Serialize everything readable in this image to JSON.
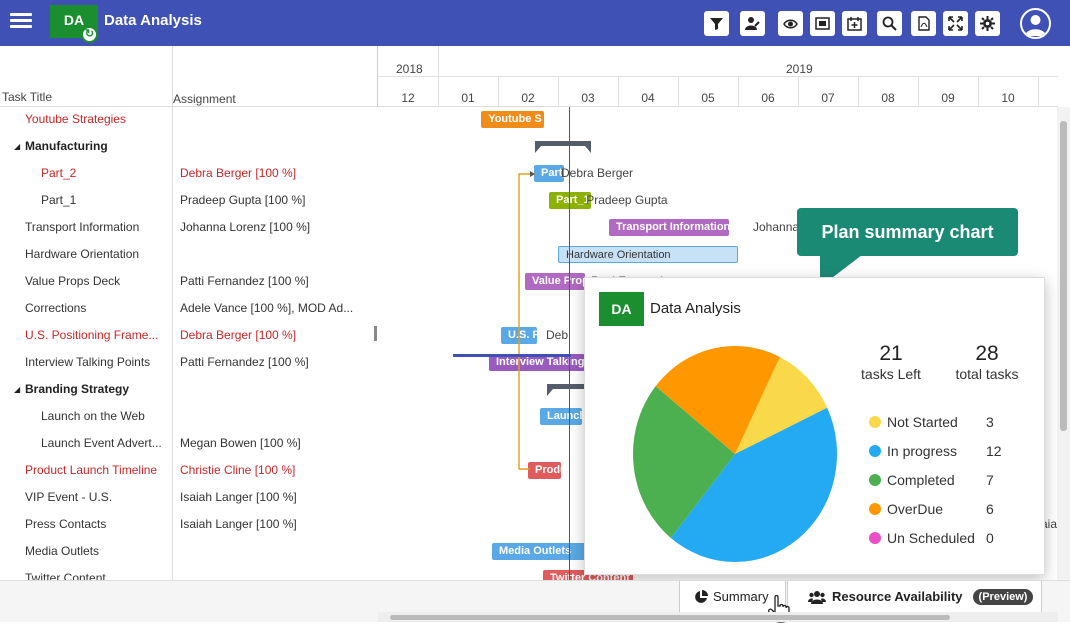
{
  "app": {
    "title": "Data Analysis",
    "logo": "DA"
  },
  "toolbar": [
    "filter-icon",
    "user-edit-icon",
    "eye-icon",
    "fit-screen-icon",
    "calendar-add-icon",
    "zoom-icon",
    "pdf-icon",
    "fullscreen-icon",
    "settings-icon"
  ],
  "grid": {
    "col_task": "Task Title",
    "col_assign": "Assignment",
    "rows": [
      {
        "task": "Youtube Strategies",
        "assign": "",
        "indent": 1,
        "style": "red"
      },
      {
        "task": "Manufacturing",
        "assign": "",
        "indent": 0,
        "style": "bold",
        "expand": "◢"
      },
      {
        "task": "Part_2",
        "assign": "Debra Berger [100 %]",
        "indent": 2,
        "style": "red"
      },
      {
        "task": "Part_1",
        "assign": "Pradeep Gupta [100 %]",
        "indent": 2,
        "style": ""
      },
      {
        "task": "Transport Information",
        "assign": "Johanna Lorenz [100 %]",
        "indent": 1,
        "style": ""
      },
      {
        "task": "Hardware Orientation",
        "assign": "",
        "indent": 1,
        "style": ""
      },
      {
        "task": "Value Props Deck",
        "assign": "Patti Fernandez [100 %]",
        "indent": 1,
        "style": ""
      },
      {
        "task": "Corrections",
        "assign": "Adele Vance [100 %], MOD Ad...",
        "indent": 1,
        "style": ""
      },
      {
        "task": "U.S. Positioning Frame...",
        "assign": "Debra Berger [100 %]",
        "indent": 1,
        "style": "red"
      },
      {
        "task": "Interview Talking Points",
        "assign": "Patti Fernandez [100 %]",
        "indent": 1,
        "style": ""
      },
      {
        "task": "Branding Strategy",
        "assign": "",
        "indent": 0,
        "style": "bold",
        "expand": "◢"
      },
      {
        "task": "Launch on the Web",
        "assign": "",
        "indent": 2,
        "style": ""
      },
      {
        "task": "Launch Event Advert...",
        "assign": "Megan Bowen [100 %]",
        "indent": 2,
        "style": ""
      },
      {
        "task": "Product Launch Timeline",
        "assign": "Christie Cline [100 %]",
        "indent": 1,
        "style": "red"
      },
      {
        "task": "VIP Event - U.S.",
        "assign": "Isaiah Langer [100 %]",
        "indent": 1,
        "style": ""
      },
      {
        "task": "Press Contacts",
        "assign": "Isaiah Langer [100 %]",
        "indent": 1,
        "style": ""
      },
      {
        "task": "Media Outlets",
        "assign": "",
        "indent": 1,
        "style": ""
      },
      {
        "task": "Twitter Content",
        "assign": "",
        "indent": 1,
        "style": ""
      }
    ]
  },
  "timeline": {
    "years": [
      "2018",
      "2019"
    ],
    "months": [
      "12",
      "01",
      "02",
      "03",
      "04",
      "05",
      "06",
      "07",
      "08",
      "09",
      "10"
    ],
    "bars": [
      {
        "label": "Youtube S",
        "row": 0,
        "start": 1.72,
        "len": 1.05,
        "color": "#ef8c1a"
      },
      {
        "label": "Part_2",
        "row": 2,
        "start": 2.6,
        "len": 0.5,
        "color": "#5aa9e6"
      },
      {
        "label": "Part_1",
        "row": 3,
        "start": 2.85,
        "len": 0.7,
        "color": "#8db100"
      },
      {
        "label": "Transport Information",
        "row": 4,
        "start": 3.85,
        "len": 2.0,
        "color": "#b06ac1"
      },
      {
        "label": "Hardware Orientation",
        "row": 5,
        "start": 3.0,
        "len": 3.0,
        "color": "#c7e2f6"
      },
      {
        "label": "Value Props",
        "row": 6,
        "start": 2.45,
        "len": 1.0,
        "color": "#b06ac1"
      },
      {
        "label": "U.S. P",
        "row": 8,
        "start": 2.05,
        "len": 0.6,
        "color": "#5aa9e6"
      },
      {
        "label": "Interview Talking",
        "row": 9,
        "start": 1.85,
        "len": 1.6,
        "color": "#9a5bbf"
      },
      {
        "label": "Launch",
        "row": 11,
        "start": 2.7,
        "len": 0.7,
        "color": "#5aa9e6"
      },
      {
        "label": "Product",
        "row": 13,
        "start": 2.5,
        "len": 0.55,
        "color": "#e05b5b"
      },
      {
        "label": "Media Outlets",
        "row": 16,
        "start": 1.9,
        "len": 1.6,
        "color": "#5aa9e6"
      },
      {
        "label": "Twitter Content",
        "row": 17,
        "start": 2.75,
        "len": 1.5,
        "color": "#e05b5b"
      }
    ],
    "labels": [
      {
        "text": "Debra Berger",
        "row": 2,
        "x": 3.05
      },
      {
        "text": "Pradeep Gupta",
        "row": 3,
        "x": 3.47
      },
      {
        "text": "Johanna",
        "row": 4,
        "x": 6.25
      },
      {
        "text": "Patti Fernandez",
        "row": 6,
        "x": 3.55
      },
      {
        "text": "Deb",
        "row": 8,
        "x": 2.8
      },
      {
        "text": "aiah",
        "row": 15,
        "x": 11.05
      }
    ]
  },
  "callout": "Plan summary chart",
  "summary": {
    "logo": "DA",
    "title": "Data Analysis",
    "tasks_left": "21",
    "tasks_left_label": "tasks Left",
    "total": "28",
    "total_label": "total tasks",
    "chart_data": {
      "type": "pie",
      "categories": [
        "Not Started",
        "In progress",
        "Completed",
        "OverDue",
        "Un Scheduled"
      ],
      "values": [
        3,
        12,
        7,
        6,
        0
      ],
      "colors": [
        "#f9d94a",
        "#24aaf2",
        "#4caf50",
        "#ff9800",
        "#e94fc6"
      ]
    }
  },
  "tabs": {
    "summary": "Summary",
    "resource": "Resource Availability",
    "preview": "(Preview)"
  }
}
